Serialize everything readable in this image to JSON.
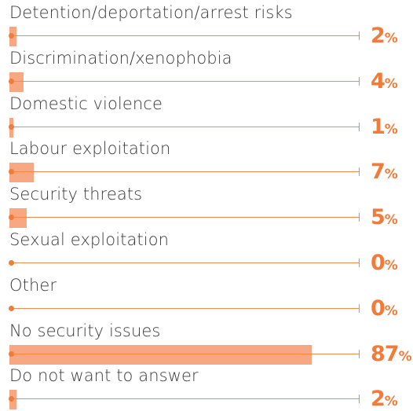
{
  "chart_data": {
    "type": "bar",
    "orientation": "horizontal",
    "categories": [
      "Detention/deportation/arrest risks",
      "Discrimination/xenophobia",
      "Domestic violence",
      "Labour exploitation",
      "Security threats",
      "Sexual exploitation",
      "Other",
      "No security issues",
      "Do not want to answer"
    ],
    "values": [
      2,
      4,
      1,
      7,
      5,
      0,
      0,
      87,
      2
    ],
    "value_suffix": "%",
    "xlim": [
      0,
      100
    ],
    "bar_color": "#f7a27a",
    "accent_color": "#f07b3a",
    "grid": false,
    "legend": "none"
  }
}
